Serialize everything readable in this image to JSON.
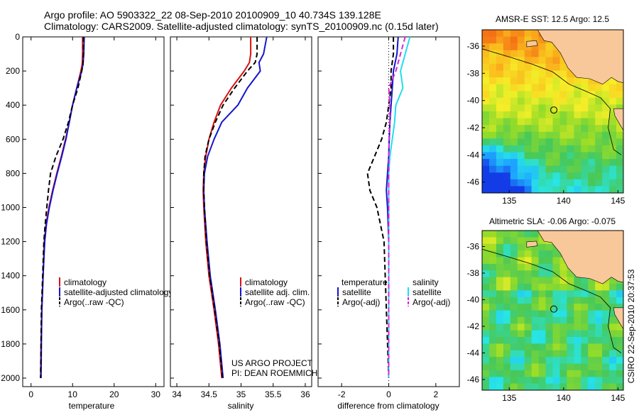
{
  "header": {
    "line1": "Argo profile: AO 5903322_22 08-Sep-2010 20100909_10 40.734S 139.128E",
    "line2": "Climatology: CARS2009. Satellite-adjusted climatology: synTS_20100909.nc (0.15d later)"
  },
  "side_label": "CSIRO 22-Sep-2010 20:37:53",
  "colors": {
    "climatology": "#dd1111",
    "satellite": "#1515cc",
    "argo": "#000000",
    "sal_satellite": "#22ddee",
    "sal_argo": "#dd22dd",
    "land": "#f8c89a"
  },
  "chart_data": [
    {
      "type": "line",
      "panel": "temperature",
      "xlabel": "temperature",
      "ylabel": "",
      "xlim": [
        -2,
        32
      ],
      "ylim": [
        2050,
        0
      ],
      "xticks": [
        0,
        10,
        20,
        30
      ],
      "xtick_labels": [
        "0",
        "10",
        "20",
        "30"
      ],
      "yticks": [
        0,
        200,
        400,
        600,
        800,
        1000,
        1200,
        1400,
        1600,
        1800,
        2000
      ],
      "ytick_labels": [
        "0",
        "200",
        "400",
        "600",
        "800",
        "1000",
        "1200",
        "1400",
        "1600",
        "1800",
        "2000"
      ],
      "legend": [
        "climatology",
        "satellite-adjusted climatology",
        "Argo(..raw -QC)"
      ],
      "series": [
        {
          "name": "climatology",
          "color": "red",
          "dash": "solid",
          "x": [
            12.4,
            12.4,
            12.3,
            12.0,
            11.0,
            10.0,
            9.2,
            8.3,
            7.3,
            6.2,
            5.2,
            4.3,
            3.6,
            3.2,
            2.9,
            2.6,
            2.4,
            2.3
          ],
          "y": [
            0,
            100,
            160,
            200,
            300,
            400,
            500,
            600,
            700,
            800,
            900,
            1000,
            1100,
            1200,
            1400,
            1600,
            1800,
            2000
          ]
        },
        {
          "name": "satellite-adjusted climatology",
          "color": "blue",
          "dash": "solid",
          "x": [
            12.8,
            12.7,
            12.5,
            12.2,
            11.0,
            10.0,
            9.2,
            8.4,
            7.4,
            6.3,
            5.3,
            4.4,
            3.7,
            3.3,
            2.9,
            2.6,
            2.5,
            2.4
          ],
          "y": [
            0,
            100,
            160,
            200,
            300,
            400,
            500,
            600,
            700,
            800,
            900,
            1000,
            1100,
            1200,
            1400,
            1600,
            1800,
            2000
          ]
        },
        {
          "name": "Argo(..raw -QC)",
          "color": "black",
          "dash": "dashed",
          "x": [
            12.6,
            12.6,
            12.5,
            12.2,
            11.3,
            10.0,
            9.0,
            7.7,
            6.0,
            4.7,
            4.2,
            3.8,
            3.4,
            3.1,
            2.8,
            2.5,
            2.4,
            2.3
          ],
          "y": [
            0,
            100,
            160,
            200,
            300,
            400,
            500,
            600,
            700,
            800,
            900,
            1000,
            1100,
            1200,
            1400,
            1600,
            1800,
            2000
          ]
        }
      ]
    },
    {
      "type": "line",
      "panel": "salinity",
      "xlabel": "salinity",
      "ylabel": "",
      "xlim": [
        33.9,
        36.1
      ],
      "ylim": [
        2050,
        0
      ],
      "xticks": [
        34,
        34.5,
        35,
        35.5,
        36
      ],
      "xtick_labels": [
        "34",
        "34.5",
        "35",
        "35.5",
        "36"
      ],
      "legend": [
        "climatology",
        "satellite adj. clim.",
        "Argo(..raw -QC)"
      ],
      "annotations": [
        "US ARGO PROJECT",
        "PI: DEAN ROEMMICH"
      ],
      "series": [
        {
          "name": "climatology",
          "color": "red",
          "dash": "solid",
          "x": [
            35.15,
            35.15,
            35.13,
            35.05,
            34.85,
            34.68,
            34.58,
            34.5,
            34.45,
            34.42,
            34.41,
            34.42,
            34.45,
            34.5,
            34.58,
            34.65,
            34.7
          ],
          "y": [
            0,
            100,
            150,
            200,
            300,
            400,
            500,
            600,
            700,
            800,
            900,
            1000,
            1200,
            1400,
            1600,
            1800,
            2000
          ]
        },
        {
          "name": "satellite adj. clim.",
          "color": "blue",
          "dash": "solid",
          "x": [
            35.4,
            35.35,
            35.28,
            35.3,
            35.1,
            34.95,
            34.7,
            34.58,
            34.48,
            34.43,
            34.42,
            34.43,
            34.47,
            34.52,
            34.6,
            34.67,
            34.72
          ],
          "y": [
            0,
            100,
            150,
            200,
            300,
            400,
            500,
            600,
            700,
            800,
            900,
            1000,
            1200,
            1400,
            1600,
            1800,
            2000
          ]
        },
        {
          "name": "Argo(..raw -QC)",
          "color": "black",
          "dash": "dashed",
          "x": [
            35.25,
            35.25,
            35.22,
            35.1,
            34.9,
            34.72,
            34.6,
            34.5,
            34.44,
            34.42,
            34.42,
            34.43,
            34.46,
            34.51,
            34.59,
            34.66,
            34.71
          ],
          "y": [
            0,
            100,
            150,
            200,
            300,
            400,
            500,
            600,
            700,
            800,
            900,
            1000,
            1200,
            1400,
            1600,
            1800,
            2000
          ]
        }
      ]
    },
    {
      "type": "line",
      "panel": "difference",
      "xlabel": "difference from climatology",
      "ylabel": "",
      "xlim": [
        -3,
        3
      ],
      "ylim": [
        2050,
        0
      ],
      "xticks": [
        -2,
        0,
        2
      ],
      "xtick_labels": [
        "-2",
        "0",
        "2"
      ],
      "legend_groups": [
        {
          "title": "temperature",
          "entries": [
            "satellite",
            "Argo(-adj)"
          ]
        },
        {
          "title": "salinity",
          "entries": [
            "satellite",
            "Argo(-adj)"
          ]
        }
      ],
      "series": [
        {
          "name": "temperature satellite",
          "color": "blue",
          "dash": "solid",
          "x": [
            0.4,
            0.35,
            0.2,
            0.15,
            0.1,
            0.05,
            0.02,
            0.0,
            -0.05,
            -0.1,
            -0.05,
            0.0,
            0.0,
            0.0
          ],
          "y": [
            0,
            100,
            200,
            300,
            400,
            500,
            600,
            700,
            800,
            900,
            1000,
            1200,
            1600,
            2000
          ]
        },
        {
          "name": "temperature Argo(-adj)",
          "color": "black",
          "dash": "dashed",
          "x": [
            0.2,
            0.2,
            0.1,
            0.1,
            0.0,
            -0.1,
            -0.3,
            -0.6,
            -0.9,
            -0.8,
            -0.5,
            -0.2,
            -0.1,
            0.0
          ],
          "y": [
            0,
            100,
            200,
            300,
            400,
            500,
            600,
            700,
            800,
            900,
            1000,
            1200,
            1600,
            2000
          ]
        },
        {
          "name": "salinity satellite",
          "color": "cyan",
          "dash": "solid",
          "x": [
            0.9,
            0.7,
            0.5,
            0.6,
            0.3,
            0.25,
            0.15,
            0.05,
            0.0,
            0.0,
            0.0,
            0.0,
            0.0,
            0.0
          ],
          "y": [
            0,
            100,
            200,
            300,
            400,
            500,
            600,
            700,
            800,
            900,
            1000,
            1200,
            1600,
            2000
          ]
        },
        {
          "name": "salinity Argo(-adj)",
          "color": "magenta",
          "dash": "dashed",
          "x": [
            0.7,
            0.5,
            0.3,
            0.0,
            0.05,
            0.05,
            0.02,
            0.0,
            0.0,
            0.0,
            0.0,
            0.0,
            0.0,
            0.0
          ],
          "y": [
            0,
            100,
            200,
            300,
            400,
            500,
            600,
            700,
            800,
            900,
            1000,
            1200,
            1600,
            2000
          ]
        }
      ]
    },
    {
      "type": "heatmap",
      "panel": "sst_map",
      "title": "AMSR-E SST: 12.5 Argo: 12.5",
      "xlim": [
        132.5,
        145.5
      ],
      "ylim": [
        -46.8,
        -34.8
      ],
      "xticks": [
        135,
        140,
        145
      ],
      "yticks": [
        -36,
        -38,
        -40,
        -42,
        -44,
        -46
      ],
      "marker": {
        "lon": 139.1,
        "lat": -40.7
      }
    },
    {
      "type": "heatmap",
      "panel": "sla_map",
      "title": "Altimetric SLA: -0.06 Argo: -0.075",
      "xlim": [
        132.5,
        145.5
      ],
      "ylim": [
        -46.8,
        -34.8
      ],
      "xticks": [
        135,
        140,
        145
      ],
      "yticks": [
        -36,
        -38,
        -40,
        -42,
        -44,
        -46
      ],
      "marker": {
        "lon": 139.1,
        "lat": -40.7
      }
    }
  ]
}
